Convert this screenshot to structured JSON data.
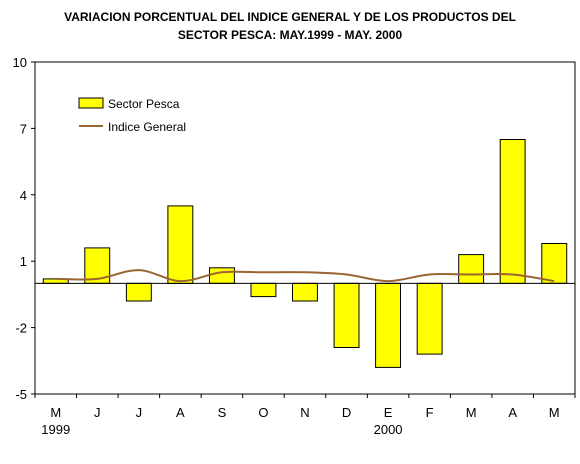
{
  "chart_data": {
    "type": "bar",
    "title_lines": [
      "VARIACION PORCENTUAL DEL INDICE GENERAL Y DE LOS PRODUCTOS DEL",
      "SECTOR PESCA: MAY.1999 - MAY. 2000"
    ],
    "categories": [
      "M",
      "J",
      "J",
      "A",
      "S",
      "O",
      "N",
      "D",
      "E",
      "F",
      "M",
      "A",
      "M"
    ],
    "year_labels": [
      {
        "index": 0,
        "label": "1999"
      },
      {
        "index": 8,
        "label": "2000"
      }
    ],
    "ylim": [
      -5,
      10
    ],
    "yticks": [
      10,
      7,
      4,
      1,
      -2,
      -5
    ],
    "legend_position": "top-left",
    "series": [
      {
        "name": "Sector Pesca",
        "kind": "bar",
        "color": "#ffff00",
        "values": [
          0.2,
          1.6,
          -0.8,
          3.5,
          0.7,
          -0.6,
          -0.8,
          -2.9,
          -3.8,
          -3.2,
          1.3,
          6.5,
          1.8
        ]
      },
      {
        "name": "Indice General",
        "kind": "line",
        "color": "#996633",
        "values": [
          0.2,
          0.2,
          0.6,
          0.1,
          0.5,
          0.5,
          0.5,
          0.4,
          0.1,
          0.4,
          0.4,
          0.4,
          0.1
        ]
      }
    ]
  }
}
